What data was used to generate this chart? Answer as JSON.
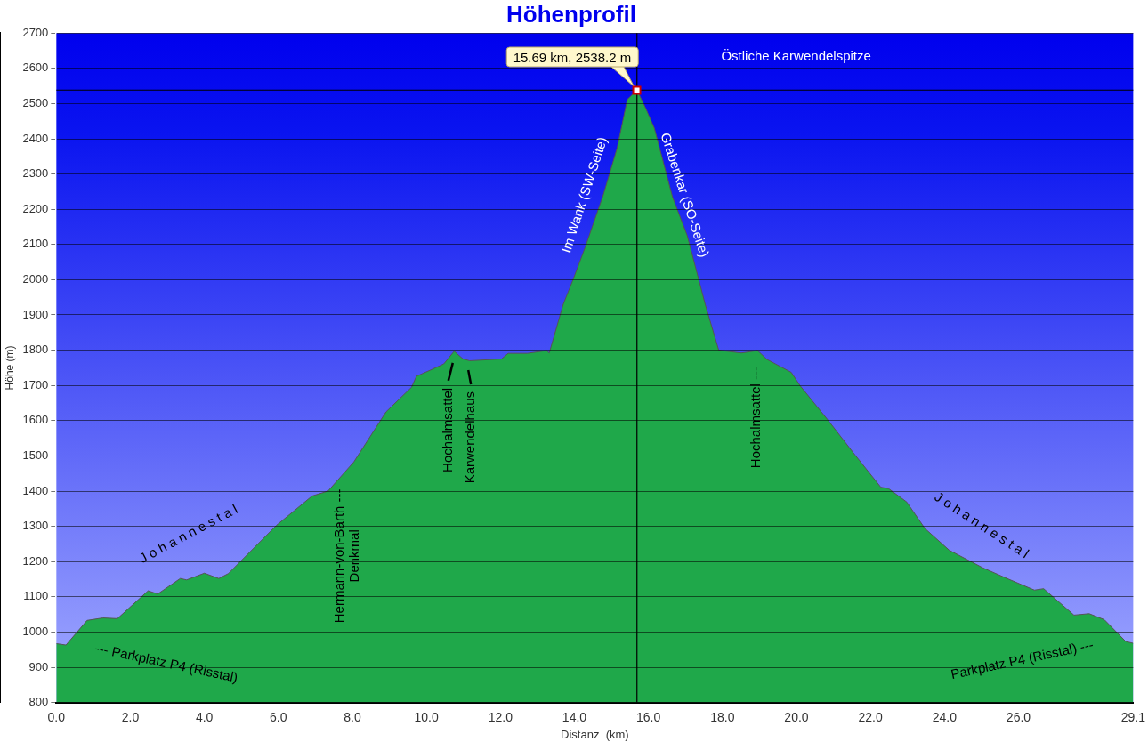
{
  "chart_data": {
    "type": "area",
    "title": "Höhenprofil",
    "xlabel": "Distanz  (km)",
    "ylabel": "Höhe (m)",
    "x": [
      0,
      0.26,
      0.83,
      1.26,
      1.65,
      2.48,
      2.74,
      3.35,
      3.52,
      4.0,
      4.39,
      4.65,
      5.95,
      6.91,
      7.34,
      8.04,
      8.91,
      9.6,
      9.73,
      10.12,
      10.47,
      10.75,
      10.99,
      11.17,
      12.03,
      12.21,
      12.73,
      13.25,
      13.32,
      13.69,
      13.97,
      14.29,
      14.78,
      15.15,
      15.43,
      15.69,
      15.92,
      16.16,
      16.65,
      17.05,
      17.54,
      17.9,
      18.51,
      18.95,
      19.2,
      19.86,
      20.1,
      20.84,
      21.58,
      22.28,
      22.49,
      22.98,
      23.47,
      24.13,
      25.04,
      25.69,
      26.43,
      26.68,
      27.5,
      27.91,
      28.32,
      28.9,
      29.1
    ],
    "series": [
      {
        "color": "#1fa84a",
        "values": [
          967,
          963,
          1033,
          1040,
          1038,
          1117,
          1108,
          1152,
          1148,
          1167,
          1152,
          1166,
          1303,
          1386,
          1400,
          1483,
          1625,
          1695,
          1726,
          1744,
          1761,
          1797,
          1775,
          1770,
          1775,
          1791,
          1791,
          1799,
          1792,
          1928,
          2002,
          2092,
          2241,
          2372,
          2512,
          2538.2,
          2488,
          2430,
          2235,
          2125,
          1928,
          1800,
          1792,
          1799,
          1774,
          1737,
          1699,
          1603,
          1503,
          1411,
          1407,
          1369,
          1294,
          1232,
          1182,
          1152,
          1119,
          1123,
          1048,
          1052,
          1035,
          973,
          968
        ]
      }
    ],
    "xlim": [
      0,
      29.1
    ],
    "xticks": [
      {
        "value": 0,
        "label": "0.0"
      },
      {
        "value": 2,
        "label": "2.0"
      },
      {
        "value": 4,
        "label": "4.0"
      },
      {
        "value": 6,
        "label": "6.0"
      },
      {
        "value": 8,
        "label": "8.0"
      },
      {
        "value": 10,
        "label": "10.0"
      },
      {
        "value": 12,
        "label": "12.0"
      },
      {
        "value": 14,
        "label": "14.0"
      },
      {
        "value": 16,
        "label": "16.0"
      },
      {
        "value": 18,
        "label": "18.0"
      },
      {
        "value": 20,
        "label": "20.0"
      },
      {
        "value": 22,
        "label": "22.0"
      },
      {
        "value": 24,
        "label": "24.0"
      },
      {
        "value": 26,
        "label": "26.0"
      },
      {
        "value": 29.1,
        "label": "29.1"
      }
    ],
    "ylim": [
      800,
      2700
    ],
    "yticks": [
      800,
      900,
      1000,
      1100,
      1200,
      1300,
      1400,
      1500,
      1600,
      1700,
      1800,
      1900,
      2000,
      2100,
      2200,
      2300,
      2400,
      2500,
      2600,
      2700
    ],
    "grid": "y",
    "legend": false,
    "marker": "none",
    "ref_lines": [
      {
        "axis": "y",
        "value": 2538.2,
        "color": "#000000"
      },
      {
        "axis": "x",
        "value": 15.69,
        "color": "#000000"
      }
    ],
    "annotations": [
      "15.69 km, 2538.2 m",
      "Östliche Karwendelspitze",
      "--- Parkplatz P4 (Risstal)",
      "Parkplatz P4 (Risstal) ---",
      "J o h a n n e s t a l",
      "J o h a n n e s t a l",
      "Hermann-von-Barth ---\nDenkmal",
      "Hochalmsattel",
      "Karwendelhaus",
      "Hochalmsattel ---",
      "Im Wank (SW-Seite)",
      "Grabenkar (SO-Seite)"
    ]
  }
}
